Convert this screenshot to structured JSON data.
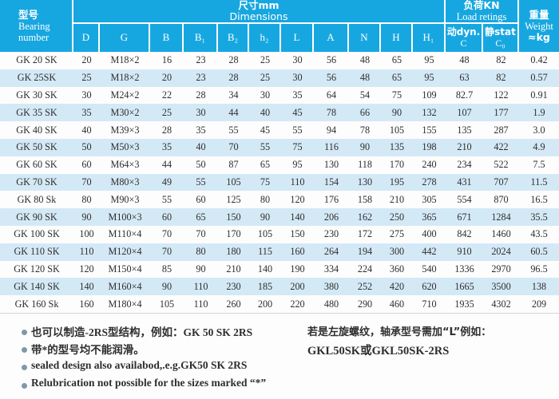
{
  "colors": {
    "header_bg": "#17a7e0",
    "header_text": "#ffffff",
    "row_stripe_bg": "#d4e9f6",
    "row_bg": "#ffffff",
    "body_text": "#2e2e2e",
    "bullet": "#7d9aa6"
  },
  "header": {
    "bearing": {
      "zh": "型号",
      "en_line1": "Bearing",
      "en_line2": "number"
    },
    "dimensions": {
      "zh": "尺寸mm",
      "en": "Dimensions"
    },
    "load": {
      "zh": "负荷KN",
      "en": "Load retings"
    },
    "weight": {
      "zh": "重量",
      "en": "Weight",
      "unit": "≈kg"
    },
    "dim_columns": [
      "D",
      "G",
      "B",
      "B₁",
      "B₂",
      "h₂",
      "L",
      "A",
      "N",
      "H",
      "H₁"
    ],
    "load_columns": [
      {
        "line1": "动dyn.",
        "line2": "C"
      },
      {
        "line1": "静stat",
        "line2": "C₀"
      }
    ]
  },
  "rows": [
    {
      "bearing": "GK 20 SK",
      "values": [
        "20",
        "M18×2",
        "16",
        "23",
        "28",
        "25",
        "30",
        "56",
        "48",
        "65",
        "95",
        "48",
        "82",
        "0.42"
      ]
    },
    {
      "bearing": "GK 25SK",
      "values": [
        "25",
        "M18×2",
        "20",
        "23",
        "28",
        "25",
        "30",
        "56",
        "48",
        "65",
        "95",
        "63",
        "82",
        "0.57"
      ]
    },
    {
      "bearing": "GK 30 SK",
      "values": [
        "30",
        "M24×2",
        "22",
        "28",
        "34",
        "30",
        "35",
        "64",
        "54",
        "75",
        "109",
        "82.7",
        "122",
        "0.91"
      ]
    },
    {
      "bearing": "GK 35 SK",
      "values": [
        "35",
        "M30×2",
        "25",
        "30",
        "44",
        "40",
        "45",
        "78",
        "66",
        "90",
        "132",
        "107",
        "177",
        "1.9"
      ]
    },
    {
      "bearing": "GK 40 SK",
      "values": [
        "40",
        "M39×3",
        "28",
        "35",
        "55",
        "45",
        "55",
        "94",
        "78",
        "105",
        "155",
        "135",
        "287",
        "3.0"
      ]
    },
    {
      "bearing": "GK 50 SK",
      "values": [
        "50",
        "M50×3",
        "35",
        "40",
        "70",
        "55",
        "75",
        "116",
        "90",
        "135",
        "198",
        "210",
        "422",
        "4.9"
      ]
    },
    {
      "bearing": "GK 60 SK",
      "values": [
        "60",
        "M64×3",
        "44",
        "50",
        "87",
        "65",
        "95",
        "130",
        "118",
        "170",
        "240",
        "234",
        "522",
        "7.5"
      ]
    },
    {
      "bearing": "GK 70 SK",
      "values": [
        "70",
        "M80×3",
        "49",
        "55",
        "105",
        "75",
        "110",
        "154",
        "130",
        "195",
        "278",
        "431",
        "707",
        "11.5"
      ]
    },
    {
      "bearing": "GK 80 Sk",
      "values": [
        "80",
        "M90×3",
        "55",
        "60",
        "125",
        "80",
        "120",
        "176",
        "158",
        "210",
        "305",
        "554",
        "870",
        "16.5"
      ]
    },
    {
      "bearing": "GK 90 SK",
      "values": [
        "90",
        "M100×3",
        "60",
        "65",
        "150",
        "90",
        "140",
        "206",
        "162",
        "250",
        "365",
        "671",
        "1284",
        "35.5"
      ]
    },
    {
      "bearing": "GK 100 SK",
      "values": [
        "100",
        "M110×4",
        "70",
        "70",
        "170",
        "105",
        "150",
        "230",
        "172",
        "275",
        "400",
        "842",
        "1460",
        "43.5"
      ]
    },
    {
      "bearing": "GK 110 SK",
      "values": [
        "110",
        "M120×4",
        "70",
        "80",
        "180",
        "115",
        "160",
        "264",
        "194",
        "300",
        "442",
        "910",
        "2024",
        "60.5"
      ]
    },
    {
      "bearing": "GK 120 SK",
      "values": [
        "120",
        "M150×4",
        "85",
        "90",
        "210",
        "140",
        "190",
        "334",
        "224",
        "360",
        "540",
        "1336",
        "2970",
        "96.5"
      ]
    },
    {
      "bearing": "GK 140 SK",
      "values": [
        "140",
        "M160×4",
        "90",
        "110",
        "230",
        "185",
        "200",
        "380",
        "252",
        "420",
        "620",
        "1665",
        "3500",
        "138"
      ]
    },
    {
      "bearing": "GK 160 Sk",
      "values": [
        "160",
        "M180×4",
        "105",
        "110",
        "260",
        "200",
        "220",
        "480",
        "290",
        "460",
        "710",
        "1935",
        "4302",
        "209"
      ]
    }
  ],
  "notes_left": [
    "也可以制造-2RS型结构，例如：GK 50 SK 2RS",
    "带*的型号均不能润滑。",
    "sealed design also availabod,.e.g.GK50  SK  2RS",
    "Relubrication not possible for the sizes marked “*”"
  ],
  "notes_right": {
    "line1": "若是左旋螺纹，轴承型号需加“L”例如：",
    "line2": "GKL50SK或GKL50SK-2RS"
  }
}
